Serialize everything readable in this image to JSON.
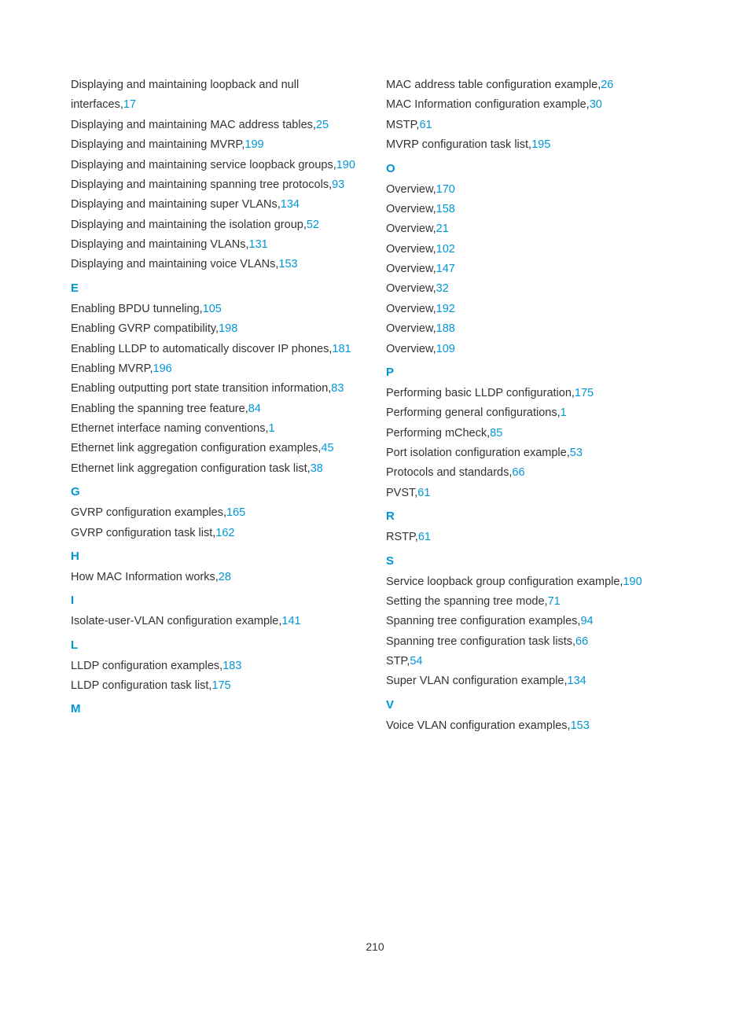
{
  "pageNumber": "210",
  "colors": {
    "link": "#0096d6",
    "text": "#333333",
    "background": "#ffffff"
  },
  "leftColumn": [
    {
      "type": "entry",
      "text": "Displaying and maintaining loopback and null interfaces,",
      "page": "17"
    },
    {
      "type": "entry",
      "text": "Displaying and maintaining MAC address tables,",
      "page": "25"
    },
    {
      "type": "entry",
      "text": "Displaying and maintaining MVRP,",
      "page": "199"
    },
    {
      "type": "entry",
      "text": "Displaying and maintaining service loopback groups,",
      "page": "190"
    },
    {
      "type": "entry",
      "text": "Displaying and maintaining spanning tree protocols,",
      "page": "93"
    },
    {
      "type": "entry",
      "text": "Displaying and maintaining super VLANs,",
      "page": "134"
    },
    {
      "type": "entry",
      "text": "Displaying and maintaining the isolation group,",
      "page": "52"
    },
    {
      "type": "entry",
      "text": "Displaying and maintaining VLANs,",
      "page": "131"
    },
    {
      "type": "entry",
      "text": "Displaying and maintaining voice VLANs,",
      "page": "153"
    },
    {
      "type": "letter",
      "text": "E"
    },
    {
      "type": "entry",
      "text": "Enabling BPDU tunneling,",
      "page": "105"
    },
    {
      "type": "entry",
      "text": "Enabling GVRP compatibility,",
      "page": "198"
    },
    {
      "type": "entry",
      "text": "Enabling LLDP to automatically discover IP phones,",
      "page": "181"
    },
    {
      "type": "entry",
      "text": "Enabling MVRP,",
      "page": "196"
    },
    {
      "type": "entry",
      "text": "Enabling outputting port state transition information,",
      "page": "83"
    },
    {
      "type": "entry",
      "text": "Enabling the spanning tree feature,",
      "page": "84"
    },
    {
      "type": "entry",
      "text": "Ethernet interface naming conventions,",
      "page": "1"
    },
    {
      "type": "entry",
      "text": "Ethernet link aggregation configuration examples,",
      "page": "45"
    },
    {
      "type": "entry",
      "text": "Ethernet link aggregation configuration task list,",
      "page": "38"
    },
    {
      "type": "letter",
      "text": "G"
    },
    {
      "type": "entry",
      "text": "GVRP configuration examples,",
      "page": "165"
    },
    {
      "type": "entry",
      "text": "GVRP configuration task list,",
      "page": "162"
    },
    {
      "type": "letter",
      "text": "H"
    },
    {
      "type": "entry",
      "text": "How MAC Information works,",
      "page": "28"
    },
    {
      "type": "letter",
      "text": "I"
    },
    {
      "type": "entry",
      "text": "Isolate-user-VLAN configuration example,",
      "page": "141"
    },
    {
      "type": "letter",
      "text": "L"
    },
    {
      "type": "entry",
      "text": "LLDP configuration examples,",
      "page": "183"
    },
    {
      "type": "entry",
      "text": "LLDP configuration task list,",
      "page": "175"
    },
    {
      "type": "letter",
      "text": "M"
    }
  ],
  "rightColumn": [
    {
      "type": "entry",
      "text": "MAC address table configuration example,",
      "page": "26"
    },
    {
      "type": "entry",
      "text": "MAC Information configuration example,",
      "page": "30"
    },
    {
      "type": "entry",
      "text": "MSTP,",
      "page": "61"
    },
    {
      "type": "entry",
      "text": "MVRP configuration task list,",
      "page": "195"
    },
    {
      "type": "letter",
      "text": "O"
    },
    {
      "type": "entry",
      "text": "Overview,",
      "page": "170"
    },
    {
      "type": "entry",
      "text": "Overview,",
      "page": "158"
    },
    {
      "type": "entry",
      "text": "Overview,",
      "page": "21"
    },
    {
      "type": "entry",
      "text": "Overview,",
      "page": "102"
    },
    {
      "type": "entry",
      "text": "Overview,",
      "page": "147"
    },
    {
      "type": "entry",
      "text": "Overview,",
      "page": "32"
    },
    {
      "type": "entry",
      "text": "Overview,",
      "page": "192"
    },
    {
      "type": "entry",
      "text": "Overview,",
      "page": "188"
    },
    {
      "type": "entry",
      "text": "Overview,",
      "page": "109"
    },
    {
      "type": "letter",
      "text": "P"
    },
    {
      "type": "entry",
      "text": "Performing basic LLDP configuration,",
      "page": "175"
    },
    {
      "type": "entry",
      "text": "Performing general configurations,",
      "page": "1"
    },
    {
      "type": "entry",
      "text": "Performing mCheck,",
      "page": "85"
    },
    {
      "type": "entry",
      "text": "Port isolation configuration example,",
      "page": "53"
    },
    {
      "type": "entry",
      "text": "Protocols and standards,",
      "page": "66"
    },
    {
      "type": "entry",
      "text": "PVST,",
      "page": "61"
    },
    {
      "type": "letter",
      "text": "R"
    },
    {
      "type": "entry",
      "text": "RSTP,",
      "page": "61"
    },
    {
      "type": "letter",
      "text": "S"
    },
    {
      "type": "entry",
      "text": "Service loopback group configuration example,",
      "page": "190"
    },
    {
      "type": "entry",
      "text": "Setting the spanning tree mode,",
      "page": "71"
    },
    {
      "type": "entry",
      "text": "Spanning tree configuration examples,",
      "page": "94"
    },
    {
      "type": "entry",
      "text": "Spanning tree configuration task lists,",
      "page": "66"
    },
    {
      "type": "entry",
      "text": "STP,",
      "page": "54"
    },
    {
      "type": "entry",
      "text": "Super VLAN configuration example,",
      "page": "134"
    },
    {
      "type": "letter",
      "text": "V"
    },
    {
      "type": "entry",
      "text": "Voice VLAN configuration examples,",
      "page": "153"
    }
  ]
}
